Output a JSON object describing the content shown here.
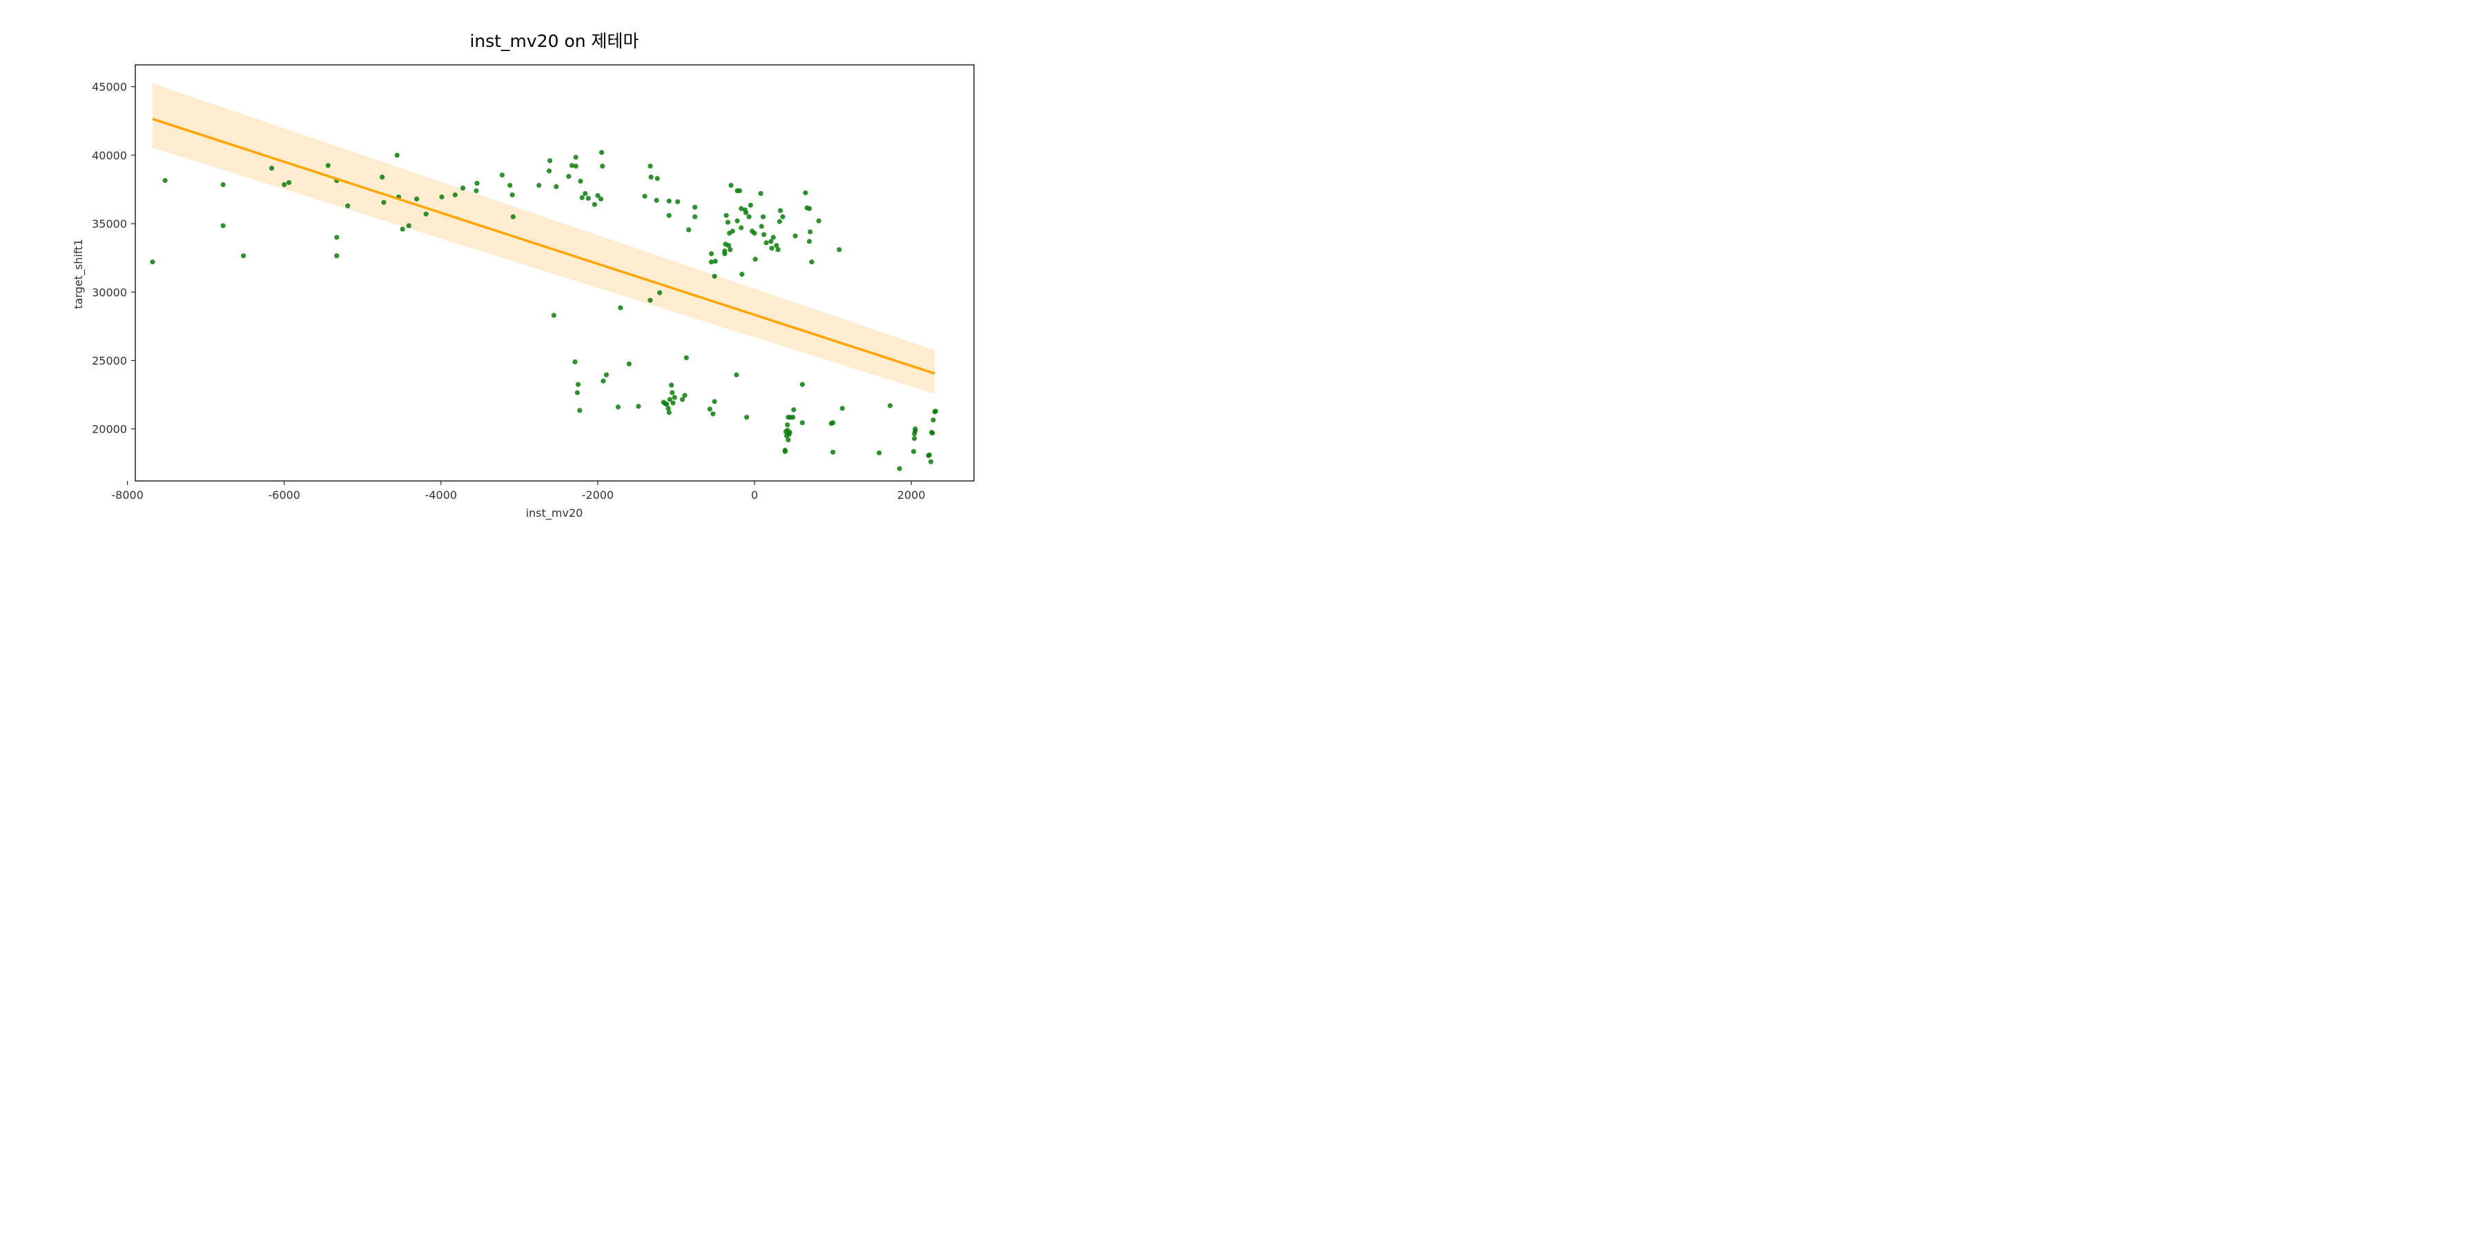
{
  "chart_data": {
    "type": "scatter",
    "title": "inst_mv20 on 제테마",
    "xlabel": "inst_mv20",
    "ylabel": "target_shift1",
    "xlim": [
      -7900,
      2800
    ],
    "ylim": [
      16200,
      46600
    ],
    "xticks": [
      -8000,
      -6000,
      -4000,
      -2000,
      0,
      2000
    ],
    "xtick_labels": [
      "-8000",
      "-6000",
      "-4000",
      "-2000",
      "0",
      "2000"
    ],
    "yticks": [
      20000,
      25000,
      30000,
      35000,
      40000,
      45000
    ],
    "ytick_labels": [
      "20000",
      "25000",
      "30000",
      "35000",
      "40000",
      "45000"
    ],
    "grid": false,
    "colors": {
      "points": "#0b7d0b",
      "regression_line": "#ffa500",
      "confidence_band": "#fde5c0",
      "frame": "#000000"
    },
    "regression": {
      "x": [
        -7680,
        2300
      ],
      "y": [
        42650,
        24050
      ],
      "ci_upper": [
        45250,
        25750
      ],
      "ci_lower": [
        40550,
        22550
      ]
    },
    "series": [
      {
        "points": [
          [
            -7680,
            32200
          ],
          [
            -7520,
            38150
          ],
          [
            -6780,
            37850
          ],
          [
            -6780,
            34850
          ],
          [
            -6520,
            32650
          ],
          [
            -6160,
            39050
          ],
          [
            -6000,
            37850
          ],
          [
            -5940,
            38000
          ],
          [
            -5440,
            39250
          ],
          [
            -5330,
            38150
          ],
          [
            -5330,
            34000
          ],
          [
            -5330,
            32650
          ],
          [
            -5190,
            36300
          ],
          [
            -4750,
            38400
          ],
          [
            -4730,
            36550
          ],
          [
            -4560,
            40000
          ],
          [
            -4540,
            36950
          ],
          [
            -4490,
            34600
          ],
          [
            -4410,
            34850
          ],
          [
            -4310,
            36800
          ],
          [
            -4190,
            35700
          ],
          [
            -3990,
            36950
          ],
          [
            -3820,
            37100
          ],
          [
            -3720,
            37600
          ],
          [
            -3550,
            37400
          ],
          [
            -3540,
            37950
          ],
          [
            -3220,
            38550
          ],
          [
            -3120,
            37800
          ],
          [
            -3090,
            37100
          ],
          [
            -3080,
            35500
          ],
          [
            -2750,
            37800
          ],
          [
            -2620,
            38850
          ],
          [
            -2610,
            39600
          ],
          [
            -2560,
            28300
          ],
          [
            -2530,
            37700
          ],
          [
            -2370,
            38450
          ],
          [
            -2330,
            39250
          ],
          [
            -2280,
            39200
          ],
          [
            -2280,
            39850
          ],
          [
            -2220,
            38100
          ],
          [
            -2200,
            36900
          ],
          [
            -2160,
            37200
          ],
          [
            -2120,
            36850
          ],
          [
            -2040,
            36400
          ],
          [
            -2000,
            37050
          ],
          [
            -1960,
            36800
          ],
          [
            -1950,
            40200
          ],
          [
            -1940,
            39200
          ],
          [
            -1330,
            39200
          ],
          [
            -1320,
            38400
          ],
          [
            -1240,
            38300
          ],
          [
            -1250,
            36700
          ],
          [
            -1400,
            37000
          ],
          [
            -1090,
            36650
          ],
          [
            -1090,
            35600
          ],
          [
            -980,
            36600
          ],
          [
            -840,
            34550
          ],
          [
            -760,
            36200
          ],
          [
            -760,
            35500
          ],
          [
            -550,
            32800
          ],
          [
            -550,
            32200
          ],
          [
            -500,
            32250
          ],
          [
            -510,
            31150
          ],
          [
            -370,
            33500
          ],
          [
            -380,
            33000
          ],
          [
            -380,
            32800
          ],
          [
            -330,
            33400
          ],
          [
            -310,
            33100
          ],
          [
            -360,
            35600
          ],
          [
            -340,
            35100
          ],
          [
            -320,
            34300
          ],
          [
            -280,
            34450
          ],
          [
            -300,
            37800
          ],
          [
            -220,
            35200
          ],
          [
            -220,
            37400
          ],
          [
            -190,
            37400
          ],
          [
            -170,
            36100
          ],
          [
            -170,
            34700
          ],
          [
            -120,
            36000
          ],
          [
            -110,
            35800
          ],
          [
            -70,
            35500
          ],
          [
            -50,
            36350
          ],
          [
            -30,
            34450
          ],
          [
            0,
            34300
          ],
          [
            10,
            32400
          ],
          [
            -160,
            31300
          ],
          [
            80,
            37200
          ],
          [
            90,
            34800
          ],
          [
            110,
            35500
          ],
          [
            120,
            34200
          ],
          [
            150,
            33600
          ],
          [
            210,
            33700
          ],
          [
            220,
            33200
          ],
          [
            240,
            34000
          ],
          [
            280,
            33400
          ],
          [
            300,
            33100
          ],
          [
            320,
            35150
          ],
          [
            330,
            35950
          ],
          [
            360,
            35500
          ],
          [
            520,
            34100
          ],
          [
            650,
            37250
          ],
          [
            670,
            36150
          ],
          [
            700,
            36100
          ],
          [
            700,
            33700
          ],
          [
            710,
            34400
          ],
          [
            730,
            32200
          ],
          [
            820,
            35200
          ],
          [
            1080,
            33100
          ],
          [
            -1210,
            29950
          ],
          [
            -1330,
            29400
          ],
          [
            -1710,
            28850
          ],
          [
            -2290,
            24900
          ],
          [
            -2260,
            22650
          ],
          [
            -2250,
            23250
          ],
          [
            -2230,
            21350
          ],
          [
            -1930,
            23500
          ],
          [
            -1890,
            23950
          ],
          [
            -1600,
            24750
          ],
          [
            -1740,
            21600
          ],
          [
            -1480,
            21650
          ],
          [
            -1160,
            21950
          ],
          [
            -1140,
            21850
          ],
          [
            -1120,
            21800
          ],
          [
            -1100,
            21500
          ],
          [
            -1090,
            21200
          ],
          [
            -1080,
            22150
          ],
          [
            -1060,
            23200
          ],
          [
            -1050,
            22650
          ],
          [
            -1040,
            21900
          ],
          [
            -1020,
            22300
          ],
          [
            -920,
            22150
          ],
          [
            -890,
            22450
          ],
          [
            -870,
            25200
          ],
          [
            -570,
            21450
          ],
          [
            -530,
            21100
          ],
          [
            -510,
            22000
          ],
          [
            -230,
            23950
          ],
          [
            -100,
            20850
          ],
          [
            390,
            18350
          ],
          [
            390,
            18450
          ],
          [
            400,
            19800
          ],
          [
            410,
            19500
          ],
          [
            420,
            20300
          ],
          [
            420,
            19900
          ],
          [
            430,
            20850
          ],
          [
            430,
            19200
          ],
          [
            440,
            19600
          ],
          [
            450,
            19750
          ],
          [
            460,
            20850
          ],
          [
            490,
            20850
          ],
          [
            500,
            21400
          ],
          [
            610,
            20450
          ],
          [
            610,
            23250
          ],
          [
            980,
            20400
          ],
          [
            1000,
            20450
          ],
          [
            1000,
            18300
          ],
          [
            1120,
            21500
          ],
          [
            1590,
            18250
          ],
          [
            1730,
            21700
          ],
          [
            1850,
            17100
          ],
          [
            2030,
            18350
          ],
          [
            2040,
            19300
          ],
          [
            2040,
            19650
          ],
          [
            2050,
            20000
          ],
          [
            2050,
            19850
          ],
          [
            2220,
            18050
          ],
          [
            2230,
            18100
          ],
          [
            2250,
            17600
          ],
          [
            2260,
            19750
          ],
          [
            2270,
            19700
          ],
          [
            2280,
            20650
          ],
          [
            2300,
            21250
          ],
          [
            2310,
            21300
          ]
        ]
      }
    ]
  }
}
